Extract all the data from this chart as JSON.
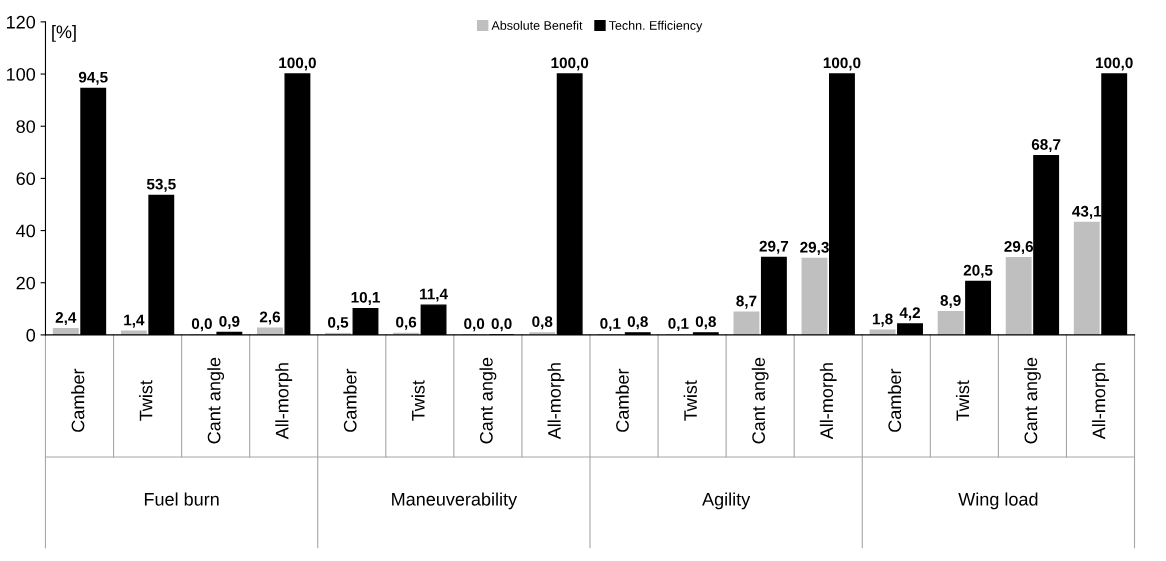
{
  "chart_data": {
    "type": "bar",
    "ylabel": "[%]",
    "categories": [
      "Camber",
      "Twist",
      "Cant angle",
      "All-morph",
      "Camber",
      "Twist",
      "Cant angle",
      "All-morph",
      "Camber",
      "Twist",
      "Cant angle",
      "All-morph",
      "Camber",
      "Twist",
      "Cant angle",
      "All-morph"
    ],
    "annotations": [
      "Fuel burn",
      "Maneuverability",
      "Agility",
      "Wing load"
    ],
    "series": [
      {
        "name": "Absolute Benefit",
        "color": "#bfbfbf",
        "values": [
          2.4,
          1.4,
          0.0,
          2.6,
          0.5,
          0.6,
          0.0,
          0.8,
          0.1,
          0.1,
          8.7,
          29.3,
          1.8,
          8.9,
          29.6,
          43.1
        ],
        "value_labels": [
          "2,4",
          "1,4",
          "0,0",
          "2,6",
          "0,5",
          "0,6",
          "0,0",
          "0,8",
          "0,1",
          "0,1",
          "8,7",
          "29,3",
          "1,8",
          "8,9",
          "29,6",
          "43,1"
        ]
      },
      {
        "name": "Techn. Efficiency",
        "color": "#000000",
        "values": [
          94.5,
          53.5,
          0.9,
          100.0,
          10.1,
          11.4,
          0.0,
          100.0,
          0.8,
          0.8,
          29.7,
          100.0,
          4.2,
          20.5,
          68.7,
          100.0
        ],
        "value_labels": [
          "94,5",
          "53,5",
          "0,9",
          "100,0",
          "10,1",
          "11,4",
          "0,0",
          "100,0",
          "0,8",
          "0,8",
          "29,7",
          "100,0",
          "4,2",
          "20,5",
          "68,7",
          "100,0"
        ]
      }
    ],
    "ylim": [
      0,
      120
    ],
    "yticks": [
      0,
      20,
      40,
      60,
      80,
      100,
      120
    ],
    "grid": false,
    "legend": "top"
  }
}
